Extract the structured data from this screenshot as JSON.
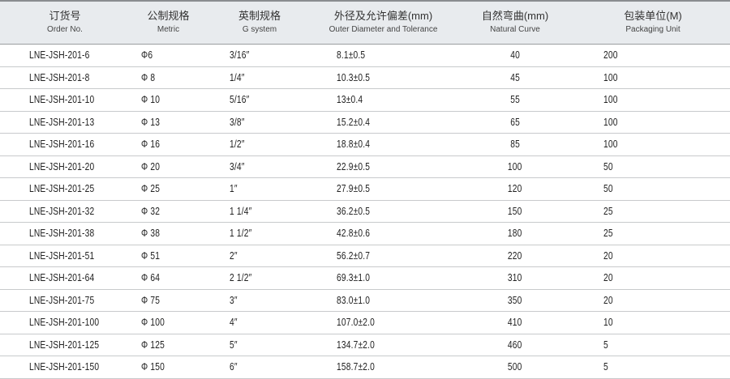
{
  "headers": [
    {
      "zh": "订货号",
      "en": "Order No."
    },
    {
      "zh": "公制规格",
      "en": "Metric"
    },
    {
      "zh": "英制规格",
      "en": "G system"
    },
    {
      "zh": "外径及允许偏差(mm)",
      "en": "Outer Diameter and Tolerance"
    },
    {
      "zh": "自然弯曲(mm)",
      "en": "Natural Curve"
    },
    {
      "zh": "包装单位(M)",
      "en": "Packaging Unit"
    }
  ],
  "rows": [
    [
      "LNE-JSH-201-6",
      "Φ6",
      "3/16″",
      "8.1±0.5",
      "40",
      "200"
    ],
    [
      "LNE-JSH-201-8",
      "Φ 8",
      "1/4″",
      "10.3±0.5",
      "45",
      "100"
    ],
    [
      "LNE-JSH-201-10",
      "Φ 10",
      "5/16″",
      "13±0.4",
      "55",
      "100"
    ],
    [
      "LNE-JSH-201-13",
      "Φ 13",
      "3/8″",
      "15.2±0.4",
      "65",
      "100"
    ],
    [
      "LNE-JSH-201-16",
      "Φ 16",
      "1/2″",
      "18.8±0.4",
      "85",
      "100"
    ],
    [
      "LNE-JSH-201-20",
      "Φ 20",
      "3/4″",
      "22.9±0.5",
      "100",
      "50"
    ],
    [
      "LNE-JSH-201-25",
      "Φ 25",
      "1″",
      "27.9±0.5",
      "120",
      "50"
    ],
    [
      "LNE-JSH-201-32",
      "Φ 32",
      "1 1/4″",
      "36.2±0.5",
      "150",
      "25"
    ],
    [
      "LNE-JSH-201-38",
      "Φ 38",
      "1 1/2″",
      "42.8±0.6",
      "180",
      "25"
    ],
    [
      "LNE-JSH-201-51",
      "Φ 51",
      "2″",
      "56.2±0.7",
      "220",
      "20"
    ],
    [
      "LNE-JSH-201-64",
      "Φ 64",
      "2 1/2″",
      "69.3±1.0",
      "310",
      "20"
    ],
    [
      "LNE-JSH-201-75",
      "Φ 75",
      "3″",
      "83.0±1.0",
      "350",
      "20"
    ],
    [
      "LNE-JSH-201-100",
      "Φ 100",
      "4″",
      "107.0±2.0",
      "410",
      "10"
    ],
    [
      "LNE-JSH-201-125",
      "Φ 125",
      "5″",
      "134.7±2.0",
      "460",
      "5"
    ],
    [
      "LNE-JSH-201-150",
      "Φ 150",
      "6″",
      "158.7±2.0",
      "500",
      "5"
    ]
  ]
}
